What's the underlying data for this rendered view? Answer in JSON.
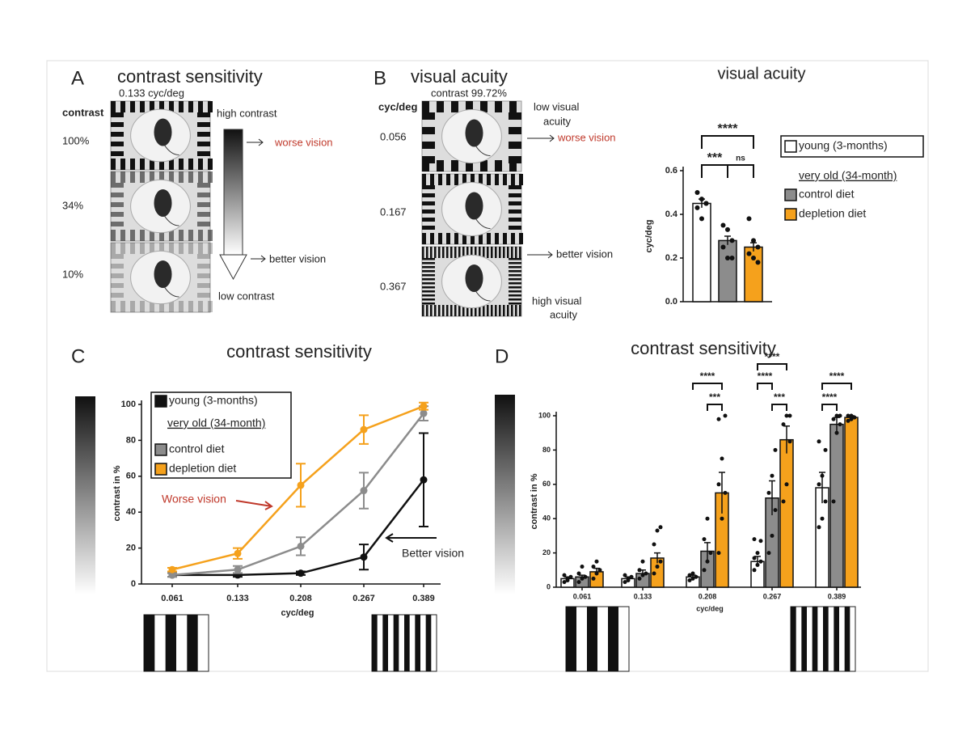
{
  "panels": {
    "a": {
      "label": "A",
      "title": "contrast sensitivity",
      "subtitle": "0.133 cyc/deg",
      "column_header": "contrast",
      "rows": [
        "100%",
        "34%",
        "10%"
      ],
      "top_label": "high contrast",
      "worse": "worse vision",
      "better": "better vision",
      "bottom_label": "low contrast"
    },
    "b": {
      "label": "B",
      "title": "visual acuity",
      "subtitle": "contrast 99.72%",
      "column_header": "cyc/deg",
      "rows": [
        "0.056",
        "0.167",
        "0.367"
      ],
      "top_label": [
        "low visual",
        "acuity"
      ],
      "worse": "worse vision",
      "better": "better vision",
      "bottom_label": [
        "high visual",
        "acuity"
      ]
    },
    "c": {
      "label": "C"
    },
    "d": {
      "label": "D"
    }
  },
  "chart_data": [
    {
      "type": "bar",
      "title": "visual acuity",
      "y_label": "cyc/deg",
      "categories": [
        null
      ],
      "series": [
        {
          "name": "young (3-months)",
          "color": "#ffffff",
          "values": [
            0.45
          ],
          "errors": [
            0.02
          ],
          "points": [
            [
              0.5,
              0.47,
              0.45,
              0.43,
              0.38,
              0.45
            ]
          ]
        },
        {
          "name": "control diet",
          "color": "#8c8c8c",
          "values": [
            0.28
          ],
          "errors": [
            0.02
          ],
          "points": [
            [
              0.35,
              0.33,
              0.28,
              0.25,
              0.2,
              0.2
            ]
          ]
        },
        {
          "name": "depletion diet",
          "color": "#f5a11c",
          "values": [
            0.25
          ],
          "errors": [
            0.02
          ],
          "points": [
            [
              0.38,
              0.28,
              0.25,
              0.22,
              0.2,
              0.18
            ]
          ]
        }
      ],
      "legend_group": "very old (34-month)",
      "ylim": [
        0,
        0.6
      ],
      "yticks": [
        {
          "value": 0,
          "label": "0.0"
        },
        0.2,
        0.4,
        0.6
      ],
      "significance": [
        "****",
        "***",
        "ns"
      ]
    },
    {
      "type": "line",
      "title": "contrast sensitivity",
      "x_label": "cyc/deg",
      "y_label": "contrast in %",
      "categories": [
        "0.061",
        "0.133",
        "0.208",
        "0.267",
        "0.389"
      ],
      "series": [
        {
          "name": "young (3-months)",
          "color": "#111111",
          "values": [
            5,
            5,
            6,
            15,
            58
          ],
          "errors": [
            1,
            1,
            1,
            7,
            26
          ]
        },
        {
          "name": "control diet",
          "color": "#8c8c8c",
          "values": [
            5,
            8,
            21,
            52,
            95
          ],
          "errors": [
            1,
            2,
            5,
            10,
            4
          ]
        },
        {
          "name": "depletion diet",
          "color": "#f5a11c",
          "values": [
            8,
            17,
            55,
            86,
            99
          ],
          "errors": [
            1,
            3,
            12,
            8,
            2
          ]
        }
      ],
      "legend_group": "very old (34-month)",
      "annotations": [
        "Worse vision",
        "Better vision"
      ],
      "ylim": [
        0,
        100
      ],
      "yticks": [
        0,
        20,
        40,
        60,
        80,
        100
      ]
    },
    {
      "type": "bar",
      "title": "contrast sensitivity",
      "x_label": "cyc/deg",
      "y_label": "contrast in %",
      "categories": [
        "0.061",
        "0.133",
        "0.208",
        "0.267",
        "0.389"
      ],
      "series": [
        {
          "color": "#ffffff",
          "values": [
            5,
            5,
            6,
            15,
            58
          ],
          "errors": [
            1,
            1,
            1,
            3,
            9
          ],
          "points": [
            [
              3,
              5,
              6,
              7,
              4
            ],
            [
              3,
              5,
              6,
              7,
              4
            ],
            [
              4,
              5,
              6,
              7,
              8
            ],
            [
              10,
              13,
              15,
              17,
              20,
              27,
              28
            ],
            [
              35,
              40,
              50,
              60,
              65,
              80,
              85
            ]
          ]
        },
        {
          "color": "#8c8c8c",
          "values": [
            6,
            8,
            21,
            52,
            95
          ],
          "errors": [
            1,
            2,
            5,
            10,
            4
          ],
          "points": [
            [
              3,
              5,
              6,
              8,
              12
            ],
            [
              5,
              7,
              8,
              10,
              15
            ],
            [
              10,
              15,
              20,
              28,
              40
            ],
            [
              20,
              30,
              45,
              55,
              65,
              80
            ],
            [
              50,
              90,
              95,
              98,
              100,
              100
            ]
          ]
        },
        {
          "color": "#f5a11c",
          "values": [
            9,
            17,
            55,
            86,
            99
          ],
          "errors": [
            2,
            3,
            12,
            8,
            1
          ],
          "points": [
            [
              5,
              8,
              10,
              12,
              15
            ],
            [
              8,
              12,
              15,
              25,
              33,
              35
            ],
            [
              20,
              40,
              55,
              60,
              75,
              100,
              98
            ],
            [
              50,
              60,
              85,
              95,
              100,
              100
            ],
            [
              97,
              98,
              99,
              100,
              100
            ]
          ]
        }
      ],
      "ylim": [
        0,
        100
      ],
      "yticks": [
        0,
        20,
        40,
        60,
        80,
        100
      ],
      "significance": [
        "****",
        "***",
        "****",
        "****",
        "***",
        "****",
        "****"
      ]
    }
  ]
}
